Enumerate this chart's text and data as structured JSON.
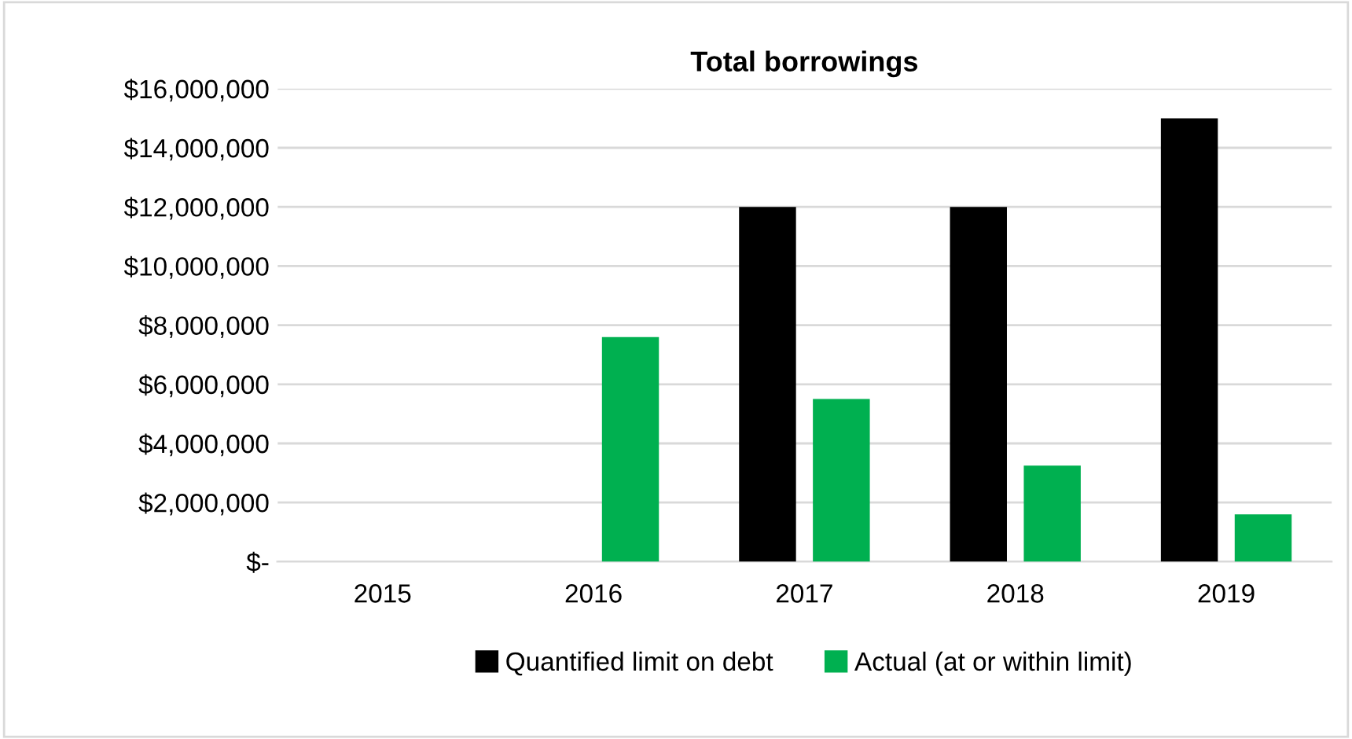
{
  "chart_data": {
    "type": "bar",
    "title": "Total borrowings",
    "categories": [
      "2015",
      "2016",
      "2017",
      "2018",
      "2019"
    ],
    "series": [
      {
        "name": "Quantified limit on debt",
        "color": "#000000",
        "values": [
          null,
          null,
          12000000,
          12000000,
          15000000
        ]
      },
      {
        "name": "Actual (at or within limit)",
        "color": "#00b050",
        "values": [
          null,
          7600000,
          5500000,
          3250000,
          1600000
        ]
      }
    ],
    "ylim": [
      0,
      16000000
    ],
    "yticks": [
      {
        "value": 0,
        "label": "$-"
      },
      {
        "value": 2000000,
        "label": "$2,000,000"
      },
      {
        "value": 4000000,
        "label": "$4,000,000"
      },
      {
        "value": 6000000,
        "label": "$6,000,000"
      },
      {
        "value": 8000000,
        "label": "$8,000,000"
      },
      {
        "value": 10000000,
        "label": "$10,000,000"
      },
      {
        "value": 12000000,
        "label": "$12,000,000"
      },
      {
        "value": 14000000,
        "label": "$14,000,000"
      },
      {
        "value": 16000000,
        "label": "$16,000,000"
      }
    ],
    "grid": "y",
    "legend": "bottom"
  }
}
